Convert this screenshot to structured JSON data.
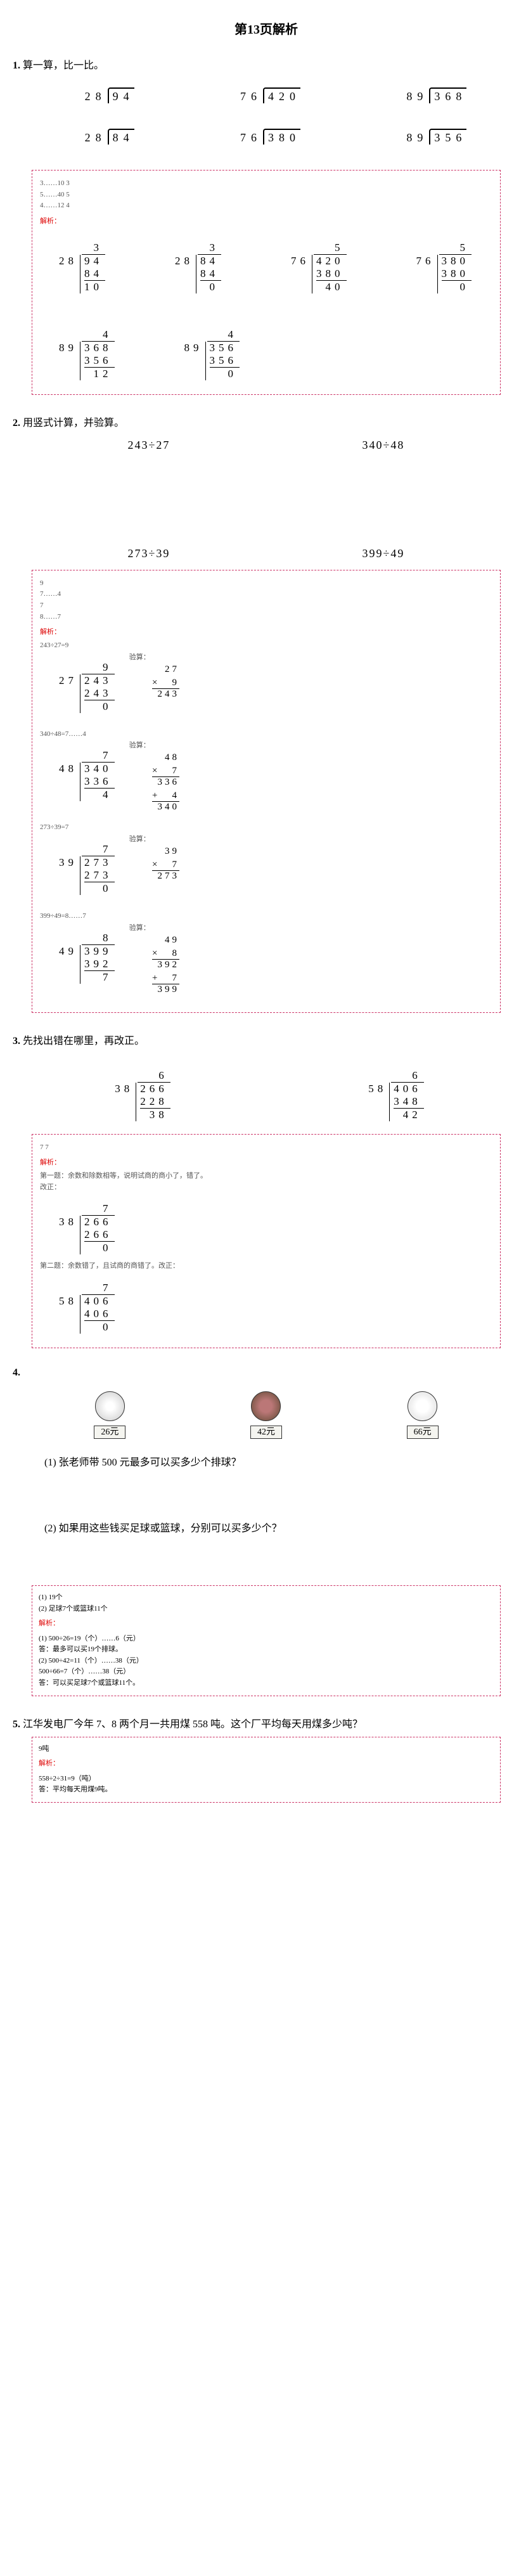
{
  "page_title": "第13页解析",
  "q1": {
    "num": "1.",
    "text": "算一算，比一比。",
    "row1": [
      {
        "divisor": "28",
        "dividend": "94"
      },
      {
        "divisor": "76",
        "dividend": "420"
      },
      {
        "divisor": "89",
        "dividend": "368"
      }
    ],
    "row2": [
      {
        "divisor": "28",
        "dividend": "84"
      },
      {
        "divisor": "76",
        "dividend": "380"
      },
      {
        "divisor": "89",
        "dividend": "356"
      }
    ],
    "solution": {
      "hints": [
        "3……10   3",
        "5……40   5",
        "4……12   4"
      ],
      "jiexi_label": "解析：",
      "works": [
        {
          "q": "3",
          "dv": "28",
          "dd": "94",
          "s": "84",
          "r": "10"
        },
        {
          "q": "3",
          "dv": "28",
          "dd": "84",
          "s": "84",
          "r": "0"
        },
        {
          "q": "5",
          "dv": "76",
          "dd": "420",
          "s": "380",
          "r": "40"
        },
        {
          "q": "5",
          "dv": "76",
          "dd": "380",
          "s": "380",
          "r": "0"
        },
        {
          "q": "4",
          "dv": "89",
          "dd": "368",
          "s": "356",
          "r": "12"
        },
        {
          "q": "4",
          "dv": "89",
          "dd": "356",
          "s": "356",
          "r": "0"
        }
      ]
    }
  },
  "q2": {
    "num": "2.",
    "text": "用竖式计算，并验算。",
    "row1": [
      "243÷27",
      "340÷48"
    ],
    "row2": [
      "273÷39",
      "399÷49"
    ],
    "solution": {
      "hints": [
        "9",
        "7……4",
        "7",
        "8……7"
      ],
      "jiexi_label": "解析：",
      "items": [
        {
          "eq": "243÷27=9",
          "q": "9",
          "dv": "27",
          "dd": "243",
          "s": "243",
          "r": "0",
          "v_top": "27",
          "v_mul": "9",
          "v_prod": "243",
          "has_add": false
        },
        {
          "eq": "340÷48=7……4",
          "q": "7",
          "dv": "48",
          "dd": "340",
          "s": "336",
          "r": "4",
          "v_top": "48",
          "v_mul": "7",
          "v_prod": "336",
          "has_add": true,
          "v_add": "4",
          "v_total": "340"
        },
        {
          "eq": "273÷39=7",
          "q": "7",
          "dv": "39",
          "dd": "273",
          "s": "273",
          "r": "0",
          "v_top": "39",
          "v_mul": "7",
          "v_prod": "273",
          "has_add": false
        },
        {
          "eq": "399÷49=8……7",
          "q": "8",
          "dv": "49",
          "dd": "399",
          "s": "392",
          "r": "7",
          "v_top": "49",
          "v_mul": "8",
          "v_prod": "392",
          "has_add": true,
          "v_add": "7",
          "v_total": "399"
        }
      ],
      "verify_label": "验算："
    }
  },
  "q3": {
    "num": "3.",
    "text": "先找出错在哪里，再改正。",
    "problems": [
      {
        "q": "6",
        "dv": "38",
        "dd": "266",
        "s": "228",
        "r": "38"
      },
      {
        "q": "6",
        "dv": "58",
        "dd": "406",
        "s": "348",
        "r": "42"
      }
    ],
    "solution": {
      "ans_line": "7  7",
      "jiexi_label": "解析：",
      "note1": "第一题：余数和除数相等，说明试商的商小了，错了。",
      "note1b": "改正：",
      "fix1": {
        "q": "7",
        "dv": "38",
        "dd": "266",
        "s": "266",
        "r": "0"
      },
      "note2": "第二题：余数错了，且试商的商错了。改正：",
      "fix2": {
        "q": "7",
        "dv": "58",
        "dd": "406",
        "s": "406",
        "r": "0"
      }
    }
  },
  "q4": {
    "num": "4.",
    "prices": [
      {
        "name": "volleyball",
        "label": "26元"
      },
      {
        "name": "basketball",
        "label": "42元"
      },
      {
        "name": "football",
        "label": "66元"
      }
    ],
    "sub1": "(1) 张老师带 500 元最多可以买多少个排球？",
    "sub2": "(2) 如果用这些钱买足球或篮球，分别可以买多少个？",
    "solution": {
      "lines": [
        "(1) 19个",
        "(2) 足球7个或篮球11个",
        "解析：",
        "(1) 500÷26=19（个）……6（元）",
        "答：最多可以买19个排球。",
        "(2) 500÷42=11（个）……38（元）",
        "500÷66=7（个）……38（元）",
        "答：可以买足球7个或篮球11个。"
      ]
    }
  },
  "q5": {
    "num": "5.",
    "text": "江华发电厂今年 7、8 两个月一共用煤 558 吨。这个厂平均每天用煤多少吨？",
    "solution": {
      "lines": [
        "9吨",
        "解析：",
        "558÷2÷31=9（吨）",
        "答：平均每天用煤9吨。"
      ]
    }
  },
  "colors": {
    "box_border": "#cc3366",
    "jiexi_color": "#dd0000",
    "text": "#000000",
    "bg": "#ffffff"
  }
}
